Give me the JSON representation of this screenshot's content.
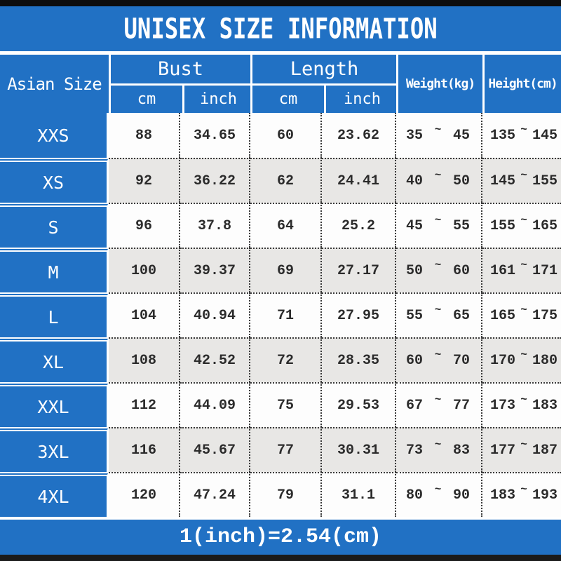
{
  "title": "UNISEX SIZE INFORMATION",
  "footer_note": "1(inch)=2.54(cm)",
  "colors": {
    "blue": "#2171c4",
    "stripe_gray": "#e8e7e5",
    "top_bar": "#0d0d0d",
    "bottom_bar": "#1b1b1b"
  },
  "table": {
    "corner_header": "Asian Size",
    "groups": [
      {
        "label": "Bust",
        "subcols": [
          "cm",
          "inch"
        ]
      },
      {
        "label": "Length",
        "subcols": [
          "cm",
          "inch"
        ]
      }
    ],
    "range_headers": [
      "Weight(kg)",
      "Height(cm)"
    ],
    "tilde": "~",
    "rows": [
      {
        "size": "XXS",
        "bust_cm": "88",
        "bust_inch": "34.65",
        "length_cm": "60",
        "length_inch": "23.62",
        "weight_min": "35",
        "weight_max": "45",
        "height_min": "135",
        "height_max": "145"
      },
      {
        "size": "XS",
        "bust_cm": "92",
        "bust_inch": "36.22",
        "length_cm": "62",
        "length_inch": "24.41",
        "weight_min": "40",
        "weight_max": "50",
        "height_min": "145",
        "height_max": "155"
      },
      {
        "size": "S",
        "bust_cm": "96",
        "bust_inch": "37.8",
        "length_cm": "64",
        "length_inch": "25.2",
        "weight_min": "45",
        "weight_max": "55",
        "height_min": "155",
        "height_max": "165"
      },
      {
        "size": "M",
        "bust_cm": "100",
        "bust_inch": "39.37",
        "length_cm": "69",
        "length_inch": "27.17",
        "weight_min": "50",
        "weight_max": "60",
        "height_min": "161",
        "height_max": "171"
      },
      {
        "size": "L",
        "bust_cm": "104",
        "bust_inch": "40.94",
        "length_cm": "71",
        "length_inch": "27.95",
        "weight_min": "55",
        "weight_max": "65",
        "height_min": "165",
        "height_max": "175"
      },
      {
        "size": "XL",
        "bust_cm": "108",
        "bust_inch": "42.52",
        "length_cm": "72",
        "length_inch": "28.35",
        "weight_min": "60",
        "weight_max": "70",
        "height_min": "170",
        "height_max": "180"
      },
      {
        "size": "XXL",
        "bust_cm": "112",
        "bust_inch": "44.09",
        "length_cm": "75",
        "length_inch": "29.53",
        "weight_min": "67",
        "weight_max": "77",
        "height_min": "173",
        "height_max": "183"
      },
      {
        "size": "3XL",
        "bust_cm": "116",
        "bust_inch": "45.67",
        "length_cm": "77",
        "length_inch": "30.31",
        "weight_min": "73",
        "weight_max": "83",
        "height_min": "177",
        "height_max": "187"
      },
      {
        "size": "4XL",
        "bust_cm": "120",
        "bust_inch": "47.24",
        "length_cm": "79",
        "length_inch": "31.1",
        "weight_min": "80",
        "weight_max": "90",
        "height_min": "183",
        "height_max": "193"
      }
    ]
  }
}
